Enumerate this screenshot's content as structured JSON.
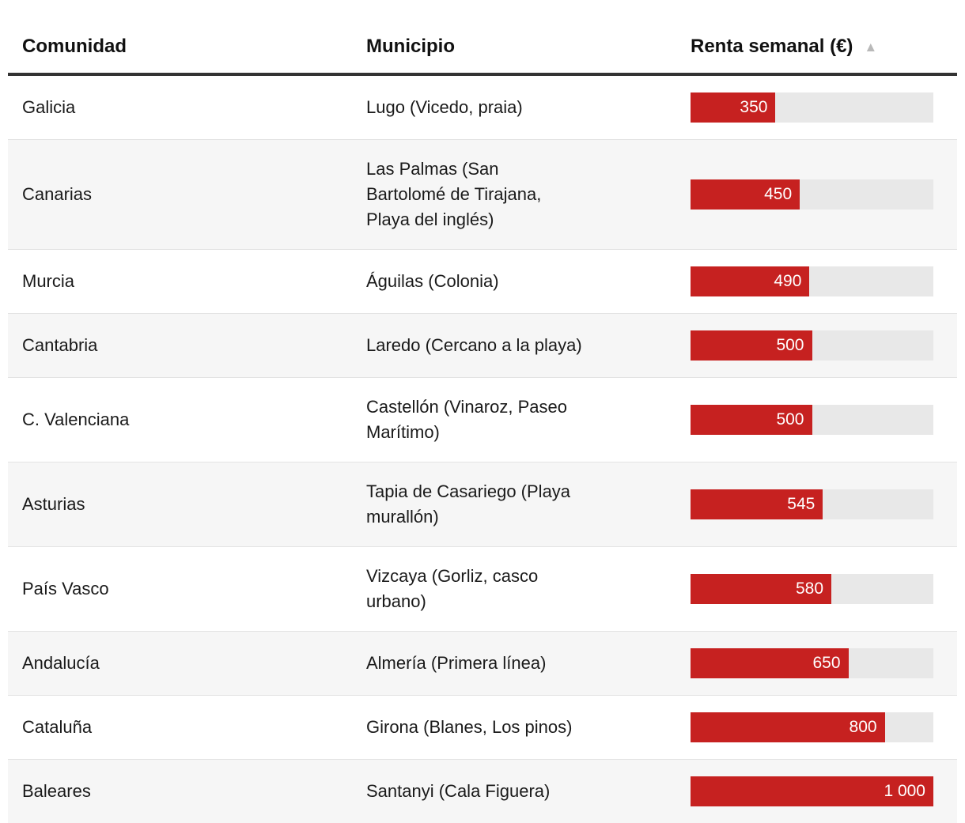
{
  "table": {
    "columns": [
      {
        "label": "Comunidad"
      },
      {
        "label": "Municipio"
      },
      {
        "label": "Renta semanal (€)",
        "sort": "ascending"
      }
    ],
    "sort_icon": "▲",
    "rows": [
      {
        "comunidad": "Galicia",
        "municipio": "Lugo (Vicedo, praia)",
        "value": 350,
        "value_display": "350"
      },
      {
        "comunidad": "Canarias",
        "municipio": "Las Palmas (San\nBartolomé de Tirajana,\nPlaya del inglés)",
        "value": 450,
        "value_display": "450"
      },
      {
        "comunidad": "Murcia",
        "municipio": "Águilas (Colonia)",
        "value": 490,
        "value_display": "490"
      },
      {
        "comunidad": "Cantabria",
        "municipio": "Laredo (Cercano a la playa)",
        "value": 500,
        "value_display": "500"
      },
      {
        "comunidad": "C. Valenciana",
        "municipio": "Castellón (Vinaroz, Paseo\nMarítimo)",
        "value": 500,
        "value_display": "500"
      },
      {
        "comunidad": "Asturias",
        "municipio": "Tapia de Casariego (Playa\nmurallón)",
        "value": 545,
        "value_display": "545"
      },
      {
        "comunidad": "País Vasco",
        "municipio": "Vizcaya (Gorliz, casco\nurbano)",
        "value": 580,
        "value_display": "580"
      },
      {
        "comunidad": "Andalucía",
        "municipio": "Almería (Primera línea)",
        "value": 650,
        "value_display": "650"
      },
      {
        "comunidad": "Cataluña",
        "municipio": "Girona (Blanes, Los pinos)",
        "value": 800,
        "value_display": "800"
      },
      {
        "comunidad": "Baleares",
        "municipio": "Santanyi (Cala Figuera)",
        "value": 1000,
        "value_display": "1 000"
      }
    ]
  },
  "chart_data": {
    "type": "bar",
    "orientation": "horizontal",
    "value_column": "Renta semanal (€)",
    "categories": [
      "Galicia",
      "Canarias",
      "Murcia",
      "Cantabria",
      "C. Valenciana",
      "Asturias",
      "País Vasco",
      "Andalucía",
      "Cataluña",
      "Baleares"
    ],
    "municipios": [
      "Lugo (Vicedo, praia)",
      "Las Palmas (San Bartolomé de Tirajana, Playa del inglés)",
      "Águilas (Colonia)",
      "Laredo (Cercano a la playa)",
      "Castellón (Vinaroz, Paseo Marítimo)",
      "Tapia de Casariego (Playa murallón)",
      "Vizcaya (Gorliz, casco urbano)",
      "Almería (Primera línea)",
      "Girona (Blanes, Los pinos)",
      "Santanyi (Cala Figuera)"
    ],
    "values": [
      350,
      450,
      490,
      500,
      500,
      545,
      580,
      650,
      800,
      1000
    ],
    "xlim": [
      0,
      1000
    ],
    "sort": "ascending",
    "legend_position": "none",
    "grid": false
  },
  "colors": {
    "bar_fill": "#c62120",
    "bar_track": "#e8e8e8",
    "row_alt_background": "#f6f6f6",
    "row_separator": "#e3e3e3",
    "header_rule": "#333333",
    "sort_icon": "#b9b9b9",
    "text": "#1a1a1a",
    "bar_label_text": "#ffffff"
  }
}
